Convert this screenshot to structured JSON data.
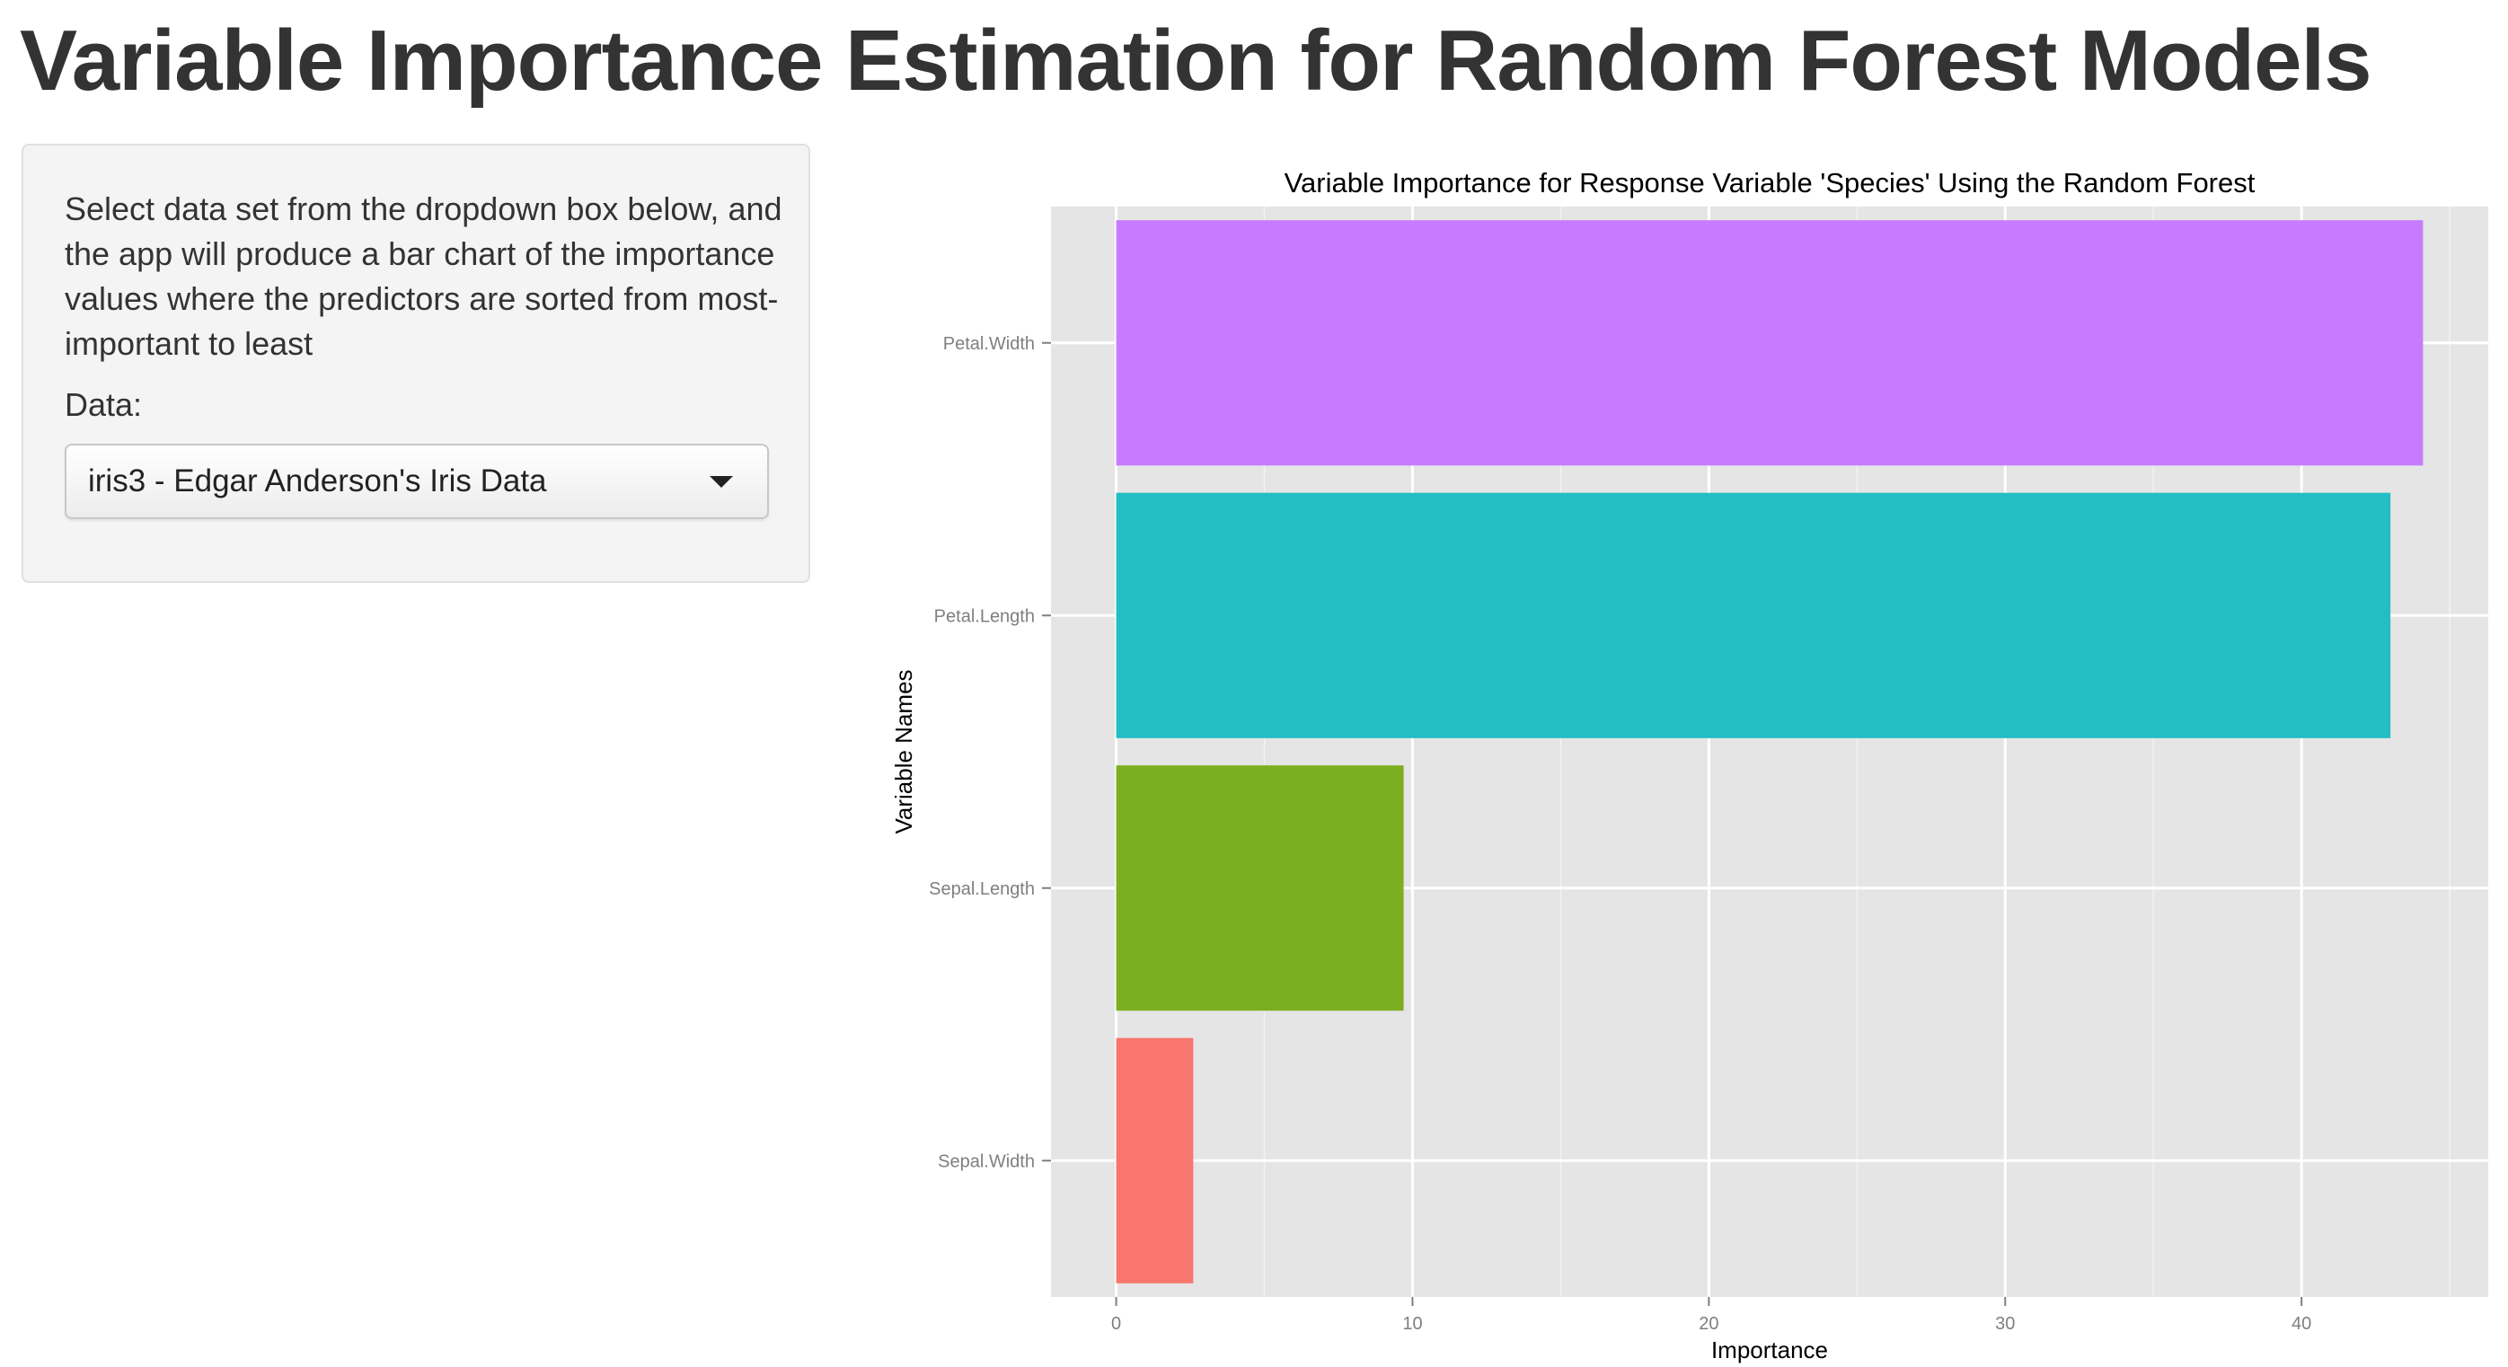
{
  "page": {
    "title": "Variable Importance Estimation for Random Forest Models"
  },
  "sidebar": {
    "help_text": "Select data set from the dropdown box below, and the app will produce a bar chart of the importance values where the predictors are sorted from most-important to least",
    "data_label": "Data:",
    "data_select": {
      "selected": "iris3 - Edgar Anderson's Iris Data",
      "icon": "caret-down-icon"
    }
  },
  "chart_data": {
    "type": "bar",
    "orientation": "horizontal",
    "title": "Variable Importance for Response Variable 'Species' Using the Random Forest",
    "xlabel": "Importance",
    "ylabel": "Variable Names",
    "categories": [
      "Petal.Width",
      "Petal.Length",
      "Sepal.Length",
      "Sepal.Width"
    ],
    "values": [
      44.1,
      43.0,
      9.7,
      2.6
    ],
    "colors": [
      "#C77CFF",
      "#22BEC4",
      "#7CAE21",
      "#F8766D"
    ],
    "xlim": [
      -2.2,
      46.3
    ],
    "xticks": [
      0,
      10,
      20,
      30,
      40
    ],
    "grid": true,
    "panel_background": "#E5E5E5",
    "legend": "none"
  }
}
